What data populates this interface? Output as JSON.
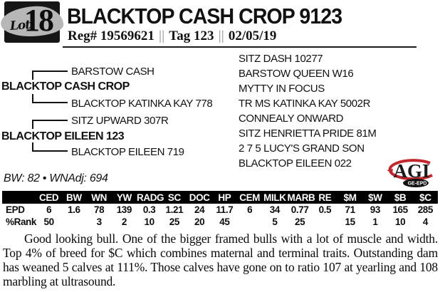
{
  "lot": {
    "label": "Lot",
    "number": "18"
  },
  "header": {
    "title": "BLACKTOP CASH CROP 9123",
    "reg": "Reg# 19569621",
    "sep": "||",
    "tag": "Tag 123",
    "date": "02/05/19"
  },
  "pedigree": {
    "sire": "BLACKTOP CASH CROP",
    "sire_sire": "BARSTOW CASH",
    "sire_dam": "BLACKTOP KATINKA KAY 778",
    "dam": "BLACKTOP EILEEN 123",
    "dam_sire": "SITZ UPWARD 307R",
    "dam_dam": "BLACKTOP EILEEN 719",
    "extended": [
      "SITZ DASH 10277",
      "BARSTOW QUEEN W16",
      "MYTTY IN FOCUS",
      "TR MS KATINKA KAY 5002R",
      "CONNEALY ONWARD",
      "SITZ HENRIETTA PRIDE 81M",
      "2 7 5 LUCY'S GRAND SON",
      "BLACKTOP EILEEN 022"
    ]
  },
  "stats_line": "BW: 82 • WNAdj: 694",
  "logo": {
    "text": "AGI",
    "sub": "GE-EPD",
    "accent": "#c1272d",
    "ink": "#1a1a1a"
  },
  "epd_table": {
    "columns": [
      "CED",
      "BW",
      "WN",
      "YW",
      "RADG",
      "SC",
      "DOC",
      "HP",
      "CEM",
      "MILK",
      "MARB",
      "RE",
      "$M",
      "$W",
      "$B",
      "$C"
    ],
    "rows": [
      {
        "label": "EPD",
        "values": [
          "6",
          "1.6",
          "78",
          "139",
          "0.3",
          "1.21",
          "24",
          "11.7",
          "6",
          "34",
          "0.77",
          "0.5",
          "71",
          "93",
          "165",
          "285"
        ]
      },
      {
        "label": "%Rank",
        "values": [
          "50",
          "",
          "3",
          "2",
          "10",
          "25",
          "20",
          "45",
          "",
          "5",
          "25",
          "",
          "15",
          "1",
          "10",
          "4"
        ]
      }
    ]
  },
  "description": "Good looking bull. One of the bigger framed bulls with a lot of muscle and width. Top 4% of breed for $C which combines maternal and terminal traits.  Outstanding dam has weaned 5 calves at 111%.  Those calves have gone on to ratio 107 at yearling and 108 marbling at ultrasound."
}
